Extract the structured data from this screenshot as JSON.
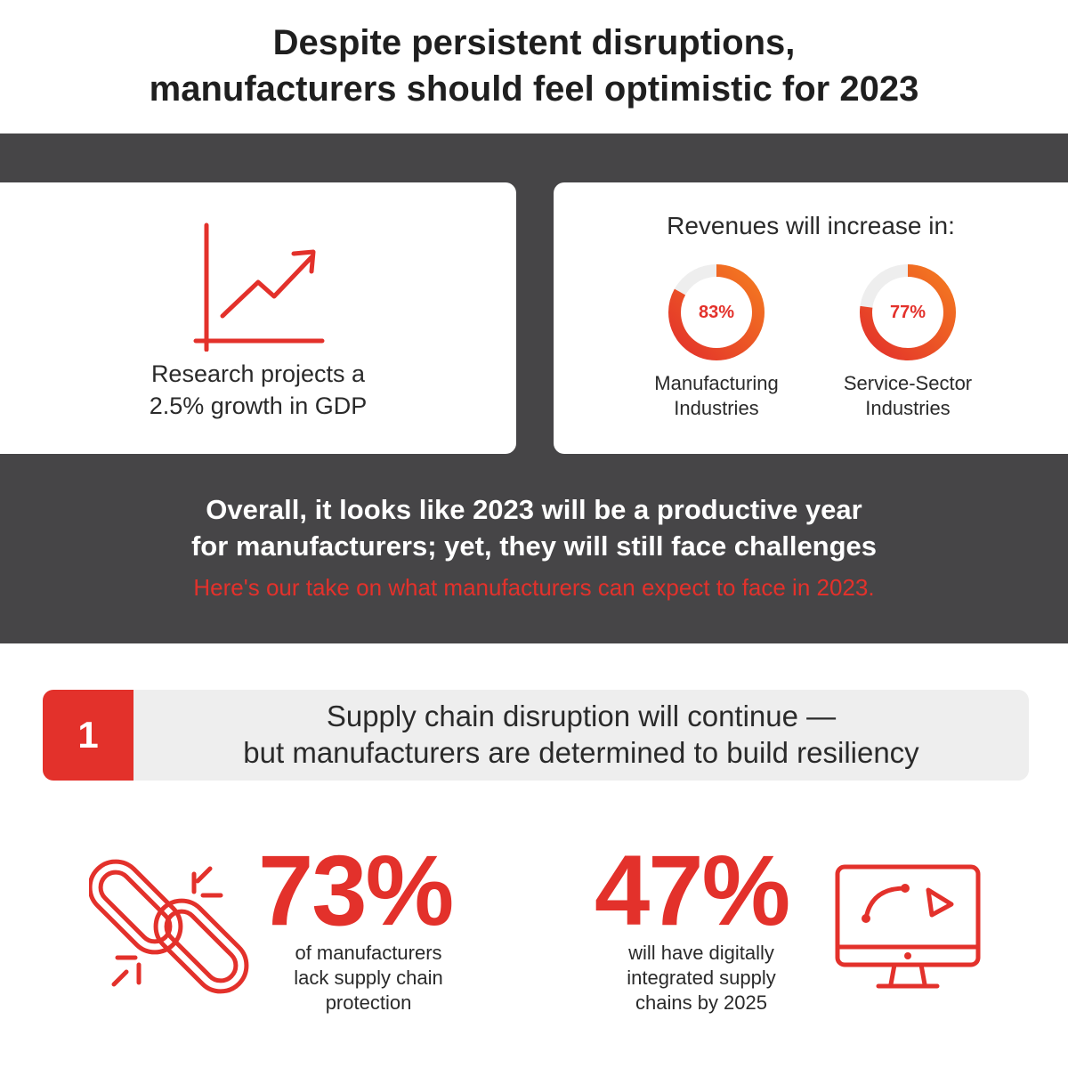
{
  "headline": {
    "line1": "Despite persistent disruptions,",
    "line2": "manufacturers should feel optimistic for 2023"
  },
  "gdp_card": {
    "icon": "growth-chart-icon",
    "line1": "Research projects a",
    "line2": "2.5% growth in GDP"
  },
  "revenue_card": {
    "title": "Revenues will increase in:",
    "items": [
      {
        "value_text": "83%",
        "value": 83,
        "label_line1": "Manufacturing",
        "label_line2": "Industries"
      },
      {
        "value_text": "77%",
        "value": 77,
        "label_line1": "Service-Sector",
        "label_line2": "Industries"
      }
    ]
  },
  "overall": {
    "line1": "Overall, it looks like 2023 will be a productive year",
    "line2": "for manufacturers; yet, they will still face challenges",
    "take": "Here's our take on what manufacturers can expect to face in 2023."
  },
  "section1": {
    "number": "1",
    "line1": "Supply chain disruption will continue —",
    "line2": "but manufacturers are determined to build resiliency"
  },
  "stats": [
    {
      "value": "73%",
      "icon": "broken-chain-icon",
      "line1": "of manufacturers",
      "line2": "lack supply chain",
      "line3": "protection"
    },
    {
      "value": "47%",
      "icon": "monitor-icon",
      "line1": "will have digitally",
      "line2": "integrated supply",
      "line3": "chains by 2025"
    }
  ],
  "colors": {
    "accent": "#e3312b",
    "accent_orange": "#f47a20",
    "dark_band": "#464547",
    "section_bg": "#eeeeee",
    "text": "#2a2a2a"
  }
}
